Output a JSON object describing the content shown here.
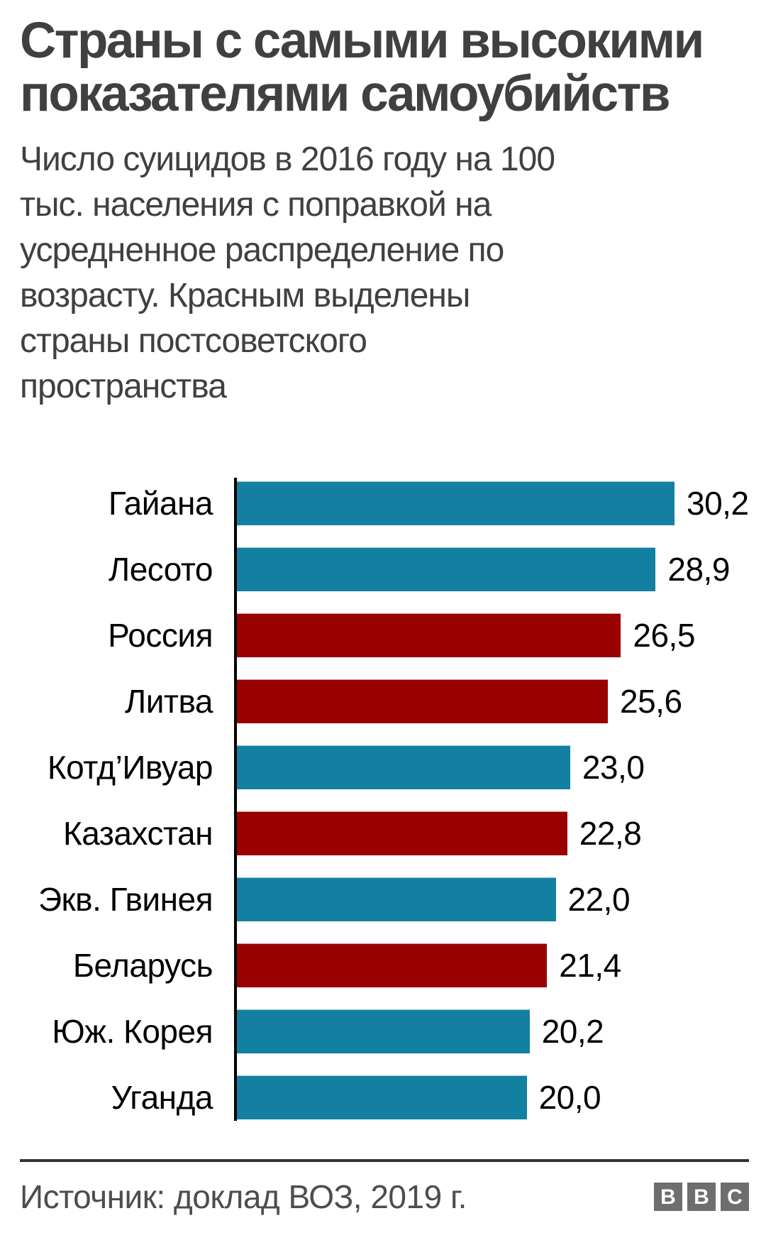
{
  "chart_data": {
    "type": "bar",
    "orientation": "horizontal",
    "title": "Страны с самыми высокими\nпоказателями самоубийств",
    "subtitle": "Число суицидов в 2016 году на 100\nтыс. населения с поправкой на\nусредненное распределение по\nвозрасту. Красным выделены\nстраны постсоветского\nпространства",
    "categories": [
      "Гайана",
      "Лесото",
      "Россия",
      "Литва",
      "Котд’Ивуар",
      "Казахстан",
      "Экв. Гвинея",
      "Беларусь",
      "Юж. Корея",
      "Уганда"
    ],
    "values": [
      30.2,
      28.9,
      26.5,
      25.6,
      23.0,
      22.8,
      22.0,
      21.4,
      20.2,
      20.0
    ],
    "value_labels": [
      "30,2",
      "28,9",
      "26,5",
      "25,6",
      "23,0",
      "22,8",
      "22,0",
      "21,4",
      "20,2",
      "20,0"
    ],
    "post_soviet_highlight": [
      false,
      false,
      true,
      true,
      false,
      true,
      false,
      true,
      false,
      false
    ],
    "bar_color_default": "#1380a1",
    "bar_color_post_soviet": "#990000",
    "xlim": [
      0,
      30.2
    ],
    "grid": false,
    "legend": "none",
    "source": "Источник: доклад ВОЗ, 2019 г."
  },
  "footer": {
    "logo_letters": [
      "B",
      "B",
      "C"
    ]
  },
  "colors": {
    "title_text": "#404040",
    "label_text": "#000000",
    "axis": "#000000",
    "divider": "#333333",
    "source_text": "#4d4d4d",
    "logo_box": "#6e6e6e",
    "background": "#ffffff"
  }
}
